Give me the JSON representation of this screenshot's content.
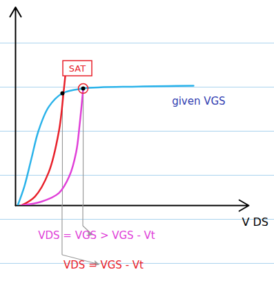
{
  "chart_data": {
    "type": "line",
    "x_label": "V DS",
    "xlim": [
      0,
      100
    ],
    "ylim": [
      0,
      100
    ],
    "xticks": [],
    "yticks": [],
    "tick_labels": false,
    "grid": false,
    "series": [
      {
        "name": "given VGS",
        "color": "#2bb3ea",
        "x": [
          0.9,
          3.8,
          6.8,
          9.8,
          14.2,
          20.1,
          29,
          52.7,
          76.3
        ],
        "values": [
          0,
          9.7,
          23.6,
          37.5,
          49.7,
          56.6,
          59,
          60,
          60.4
        ]
      },
      {
        "name": "VDS = VGS - Vt",
        "color": "#e8202a",
        "x": [
          2.4,
          8.3,
          14.2,
          18.6,
          20.7,
          21.9
        ],
        "values": [
          0,
          4.5,
          16.7,
          37.5,
          58.3,
          72.2
        ]
      },
      {
        "name": "VDS = VGS > VGS - Vt",
        "color": "#e040d8",
        "x": [
          2.4,
          11.2,
          18.6,
          23.1,
          26,
          27.5,
          29
        ],
        "values": [
          0,
          2,
          6.3,
          14.9,
          27,
          41,
          59
        ]
      }
    ],
    "points": [
      {
        "x": 20.1,
        "y": 56.6
      },
      {
        "x": 29,
        "y": 59,
        "label": "SAT"
      }
    ]
  }
}
